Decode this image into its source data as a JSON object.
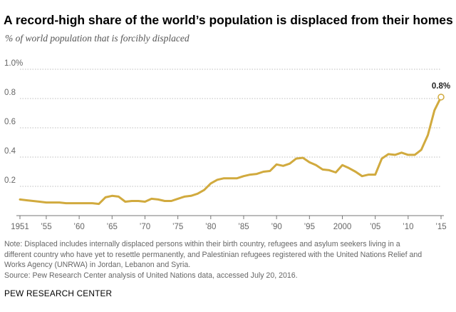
{
  "chart_data": {
    "type": "line",
    "title": "A record-high share of the world’s population is displaced from their homes",
    "subtitle": "% of world population that is forcibly displaced",
    "xlabel": "",
    "ylabel": "",
    "xlim": [
      1951,
      2015
    ],
    "ylim": [
      0,
      1.0
    ],
    "yticks": [
      {
        "value": 0.2,
        "label": "0.2"
      },
      {
        "value": 0.4,
        "label": "0.4"
      },
      {
        "value": 0.6,
        "label": "0.6"
      },
      {
        "value": 0.8,
        "label": "0.8"
      },
      {
        "value": 1.0,
        "label": "1.0%"
      }
    ],
    "xticks": [
      {
        "value": 1951,
        "label": "1951"
      },
      {
        "value": 1955,
        "label": "’55"
      },
      {
        "value": 1960,
        "label": "’60"
      },
      {
        "value": 1965,
        "label": "’65"
      },
      {
        "value": 1970,
        "label": "’70"
      },
      {
        "value": 1975,
        "label": "’75"
      },
      {
        "value": 1980,
        "label": "’80"
      },
      {
        "value": 1985,
        "label": "’85"
      },
      {
        "value": 1990,
        "label": "’90"
      },
      {
        "value": 1995,
        "label": "’95"
      },
      {
        "value": 2000,
        "label": "2000"
      },
      {
        "value": 2005,
        "label": "’05"
      },
      {
        "value": 2010,
        "label": "’10"
      },
      {
        "value": 2015,
        "label": "’15"
      }
    ],
    "grid": true,
    "line_color": "#d1aa3e",
    "series": [
      {
        "x": [
          1951,
          1952,
          1953,
          1954,
          1955,
          1956,
          1957,
          1958,
          1959,
          1960,
          1961,
          1962,
          1963,
          1964,
          1965,
          1966,
          1967,
          1968,
          1969,
          1970,
          1971,
          1972,
          1973,
          1974,
          1975,
          1976,
          1977,
          1978,
          1979,
          1980,
          1981,
          1982,
          1983,
          1984,
          1985,
          1986,
          1987,
          1988,
          1989,
          1990,
          1991,
          1992,
          1993,
          1994,
          1995,
          1996,
          1997,
          1998,
          1999,
          2000,
          2001,
          2002,
          2003,
          2004,
          2005,
          2006,
          2007,
          2008,
          2009,
          2010,
          2011,
          2012,
          2013,
          2014,
          2015
        ],
        "values": [
          0.11,
          0.105,
          0.1,
          0.095,
          0.09,
          0.09,
          0.09,
          0.085,
          0.085,
          0.085,
          0.085,
          0.085,
          0.08,
          0.125,
          0.135,
          0.13,
          0.095,
          0.1,
          0.1,
          0.095,
          0.115,
          0.11,
          0.1,
          0.1,
          0.115,
          0.13,
          0.135,
          0.15,
          0.175,
          0.22,
          0.245,
          0.255,
          0.255,
          0.255,
          0.27,
          0.28,
          0.285,
          0.3,
          0.305,
          0.35,
          0.34,
          0.355,
          0.39,
          0.395,
          0.365,
          0.345,
          0.315,
          0.31,
          0.295,
          0.345,
          0.325,
          0.3,
          0.27,
          0.28,
          0.28,
          0.39,
          0.42,
          0.415,
          0.43,
          0.415,
          0.415,
          0.45,
          0.55,
          0.72,
          0.81
        ]
      }
    ],
    "annotations": [
      {
        "x": 2015,
        "y": 0.81,
        "text": "0.8%"
      }
    ]
  },
  "notes": {
    "line1": "Note: Displaced includes internally displaced persons within their birth country, refugees and asylum seekers living in a",
    "line2": "different country who have yet to resettle permanently, and Palestinian refugees registered with the United Nations Relief and",
    "line3": "Works Agency (UNRWA) in Jordan, Lebanon and Syria.",
    "source": "Source: Pew Research Center analysis of United Nations data, accessed July 20, 2016."
  },
  "brand": "PEW RESEARCH CENTER"
}
